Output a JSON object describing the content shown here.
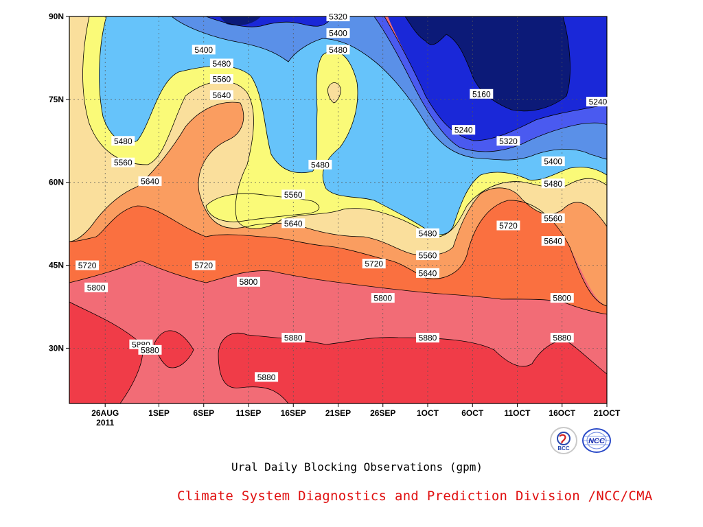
{
  "chart_data": {
    "type": "heatmap",
    "subtype": "filled-contour",
    "title": "Ural Daily Blocking Observations (gpm)",
    "xlabel": "",
    "ylabel": "",
    "x_ticks": [
      "26AUG",
      "1SEP",
      "6SEP",
      "11SEP",
      "16SEP",
      "21SEP",
      "26SEP",
      "1OCT",
      "6OCT",
      "11OCT",
      "16OCT",
      "21OCT"
    ],
    "x_tick_display": [
      "26AUG",
      "1SEP",
      "6SEP",
      "11SEP",
      "16SEP",
      "21SEP",
      "26SEP",
      "1OCT",
      "6OCT",
      "11OCT",
      "16OCT",
      "21OCT"
    ],
    "x_year_label": "2011",
    "x_range": [
      "2011-08-22",
      "2011-10-21"
    ],
    "y_ticks": [
      "30N",
      "45N",
      "60N",
      "75N",
      "90N"
    ],
    "y_range": [
      20,
      90
    ],
    "contour_levels": [
      5160,
      5240,
      5320,
      5400,
      5480,
      5560,
      5640,
      5720,
      5800,
      5880
    ],
    "colors": {
      "below_5160": "#0c1a78",
      "5160_5240": "#1a28d8",
      "5240_5320": "#4a5af0",
      "5320_5400": "#5a90e8",
      "5400_5480": "#66c3fa",
      "5480_5560": "#fafa78",
      "5560_5640": "#fadf9c",
      "5640_5720": "#fa9d60",
      "5720_5800": "#fa7040",
      "5800_5880": "#f26c76",
      "above_5880": "#f03c48"
    },
    "contour_labels": [
      {
        "text": "5320",
        "date": "2011-09-21",
        "lat": 90
      },
      {
        "text": "5400",
        "date": "2011-09-21",
        "lat": 87
      },
      {
        "text": "5480",
        "date": "2011-09-21",
        "lat": 84
      },
      {
        "text": "5400",
        "date": "2011-09-06",
        "lat": 84
      },
      {
        "text": "5480",
        "date": "2011-09-08",
        "lat": 81.5
      },
      {
        "text": "5560",
        "date": "2011-09-08",
        "lat": 78.7
      },
      {
        "text": "5640",
        "date": "2011-09-08",
        "lat": 75.8
      },
      {
        "text": "5160",
        "date": "2011-10-07",
        "lat": 76
      },
      {
        "text": "5240",
        "date": "2011-10-05",
        "lat": 69.5
      },
      {
        "text": "5320",
        "date": "2011-10-10",
        "lat": 67.5
      },
      {
        "text": "5400",
        "date": "2011-10-15",
        "lat": 63.8
      },
      {
        "text": "5480",
        "date": "2011-10-15",
        "lat": 59.8
      },
      {
        "text": "5240",
        "date": "2011-10-20",
        "lat": 74.6
      },
      {
        "text": "5480",
        "date": "2011-08-28",
        "lat": 67.5
      },
      {
        "text": "5560",
        "date": "2011-08-28",
        "lat": 63.6
      },
      {
        "text": "5640",
        "date": "2011-08-31",
        "lat": 60.2
      },
      {
        "text": "5480",
        "date": "2011-09-19",
        "lat": 63.2
      },
      {
        "text": "5560",
        "date": "2011-09-16",
        "lat": 57.8
      },
      {
        "text": "5640",
        "date": "2011-09-16",
        "lat": 52.6
      },
      {
        "text": "5480",
        "date": "2011-10-01",
        "lat": 50.8
      },
      {
        "text": "5560",
        "date": "2011-10-01",
        "lat": 46.8
      },
      {
        "text": "5640",
        "date": "2011-10-01",
        "lat": 43.6
      },
      {
        "text": "5720",
        "date": "2011-10-10",
        "lat": 52.2
      },
      {
        "text": "5560",
        "date": "2011-10-15",
        "lat": 53.5
      },
      {
        "text": "5640",
        "date": "2011-10-15",
        "lat": 49.4
      },
      {
        "text": "5720",
        "date": "2011-08-24",
        "lat": 45.0
      },
      {
        "text": "5720",
        "date": "2011-09-06",
        "lat": 45.0
      },
      {
        "text": "5720",
        "date": "2011-09-25",
        "lat": 45.3
      },
      {
        "text": "5800",
        "date": "2011-08-25",
        "lat": 41.0
      },
      {
        "text": "5800",
        "date": "2011-09-11",
        "lat": 42.0
      },
      {
        "text": "5800",
        "date": "2011-09-26",
        "lat": 39.1
      },
      {
        "text": "5800",
        "date": "2011-10-16",
        "lat": 39.1
      },
      {
        "text": "5880",
        "date": "2011-08-30",
        "lat": 30.7
      },
      {
        "text": "5880",
        "date": "2011-08-31",
        "lat": 29.7
      },
      {
        "text": "5880",
        "date": "2011-09-16",
        "lat": 31.9
      },
      {
        "text": "5880",
        "date": "2011-10-01",
        "lat": 31.9
      },
      {
        "text": "5880",
        "date": "2011-10-16",
        "lat": 31.9
      },
      {
        "text": "5880",
        "date": "2011-09-13",
        "lat": 24.8
      }
    ]
  },
  "footer": {
    "title": "Ural Daily Blocking Observations (gpm)",
    "credit": "Climate System Diagnostics and Prediction Division /NCC/CMA"
  },
  "logos": [
    {
      "name": "bcc-logo",
      "text": "BCC"
    },
    {
      "name": "ncc-logo",
      "text": "NCC"
    }
  ]
}
